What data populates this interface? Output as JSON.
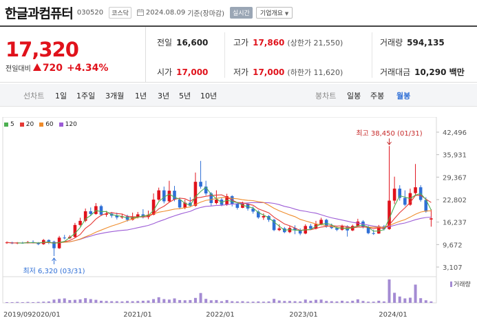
{
  "header": {
    "name": "한글과컴퓨터",
    "code": "030520",
    "market": "코스닥",
    "date": "2024.08.09",
    "basis": "기준(장마감)",
    "realtime": "실시간",
    "company_btn": "기업개요"
  },
  "price": {
    "current": "17,320",
    "diff_label": "전일대비",
    "diff": "720",
    "diff_pct": "+4.34%"
  },
  "stats": {
    "prev_label": "전일",
    "prev_val": "16,600",
    "high_label": "고가",
    "high_val": "17,860",
    "upper_limit": "(상한가 21,550)",
    "volume_label": "거래량",
    "volume_val": "594,135",
    "open_label": "시가",
    "open_val": "17,000",
    "low_label": "저가",
    "low_val": "17,000",
    "lower_limit": "(하한가 11,620)",
    "amount_label": "거래대금",
    "amount_val": "10,290 백만"
  },
  "tabs": {
    "line": "선차트",
    "p1d": "1일",
    "p1w": "1주일",
    "p3m": "3개월",
    "p1y": "1년",
    "p3y": "3년",
    "p5y": "5년",
    "p10y": "10년",
    "candle": "봉차트",
    "daily": "일봉",
    "weekly": "주봉",
    "monthly": "월봉"
  },
  "colors": {
    "up": "#e0121b",
    "down": "#2f6fd6",
    "ma5": "#4caf50",
    "ma20": "#e53935",
    "ma60": "#ef8c2b",
    "ma120": "#9c5bd6",
    "volume": "#a48bd3"
  },
  "chart_data": {
    "type": "candlestick",
    "ma_legend": [
      {
        "label": "5",
        "color": "#4caf50"
      },
      {
        "label": "20",
        "color": "#e53935"
      },
      {
        "label": "60",
        "color": "#ef8c2b"
      },
      {
        "label": "120",
        "color": "#9c5bd6"
      }
    ],
    "y_ticks": [
      "42,496",
      "35,931",
      "29,367",
      "22,802",
      "16,237",
      "9,672",
      "3,107"
    ],
    "ylim": [
      3107,
      42496
    ],
    "x_ticks": [
      "2019/09",
      "2020/01",
      "2021/01",
      "2022/01",
      "2023/01",
      "2024/01"
    ],
    "max_note": "최고 38,450 (01/31)",
    "min_note": "최저 6,320 (03/31)",
    "volume_label": "거래량",
    "candles": [
      {
        "o": 10100,
        "c": 10300,
        "h": 10600,
        "l": 9900
      },
      {
        "o": 10300,
        "c": 10000,
        "h": 10500,
        "l": 9800
      },
      {
        "o": 10000,
        "c": 10200,
        "h": 10400,
        "l": 9800
      },
      {
        "o": 10200,
        "c": 10100,
        "h": 10500,
        "l": 9900
      },
      {
        "o": 10100,
        "c": 10400,
        "h": 10700,
        "l": 10000
      },
      {
        "o": 10400,
        "c": 10200,
        "h": 10900,
        "l": 10000
      },
      {
        "o": 10200,
        "c": 9800,
        "h": 10400,
        "l": 9500
      },
      {
        "o": 9800,
        "c": 11000,
        "h": 11300,
        "l": 9600
      },
      {
        "o": 11000,
        "c": 10500,
        "h": 11200,
        "l": 9800
      },
      {
        "o": 10500,
        "c": 8600,
        "h": 10800,
        "l": 6320
      },
      {
        "o": 8600,
        "c": 11700,
        "h": 12200,
        "l": 8400
      },
      {
        "o": 11700,
        "c": 11500,
        "h": 12500,
        "l": 11200
      },
      {
        "o": 11500,
        "c": 11900,
        "h": 12400,
        "l": 11300
      },
      {
        "o": 11900,
        "c": 15400,
        "h": 16000,
        "l": 11700
      },
      {
        "o": 15400,
        "c": 16600,
        "h": 17500,
        "l": 15000
      },
      {
        "o": 16600,
        "c": 19400,
        "h": 20200,
        "l": 16200
      },
      {
        "o": 19400,
        "c": 18600,
        "h": 20500,
        "l": 18000
      },
      {
        "o": 18600,
        "c": 20900,
        "h": 21800,
        "l": 18400
      },
      {
        "o": 20900,
        "c": 18400,
        "h": 21300,
        "l": 18000
      },
      {
        "o": 18400,
        "c": 18700,
        "h": 19500,
        "l": 17800
      },
      {
        "o": 18700,
        "c": 18100,
        "h": 19200,
        "l": 17500
      },
      {
        "o": 18100,
        "c": 17600,
        "h": 19000,
        "l": 17000
      },
      {
        "o": 17600,
        "c": 17900,
        "h": 18700,
        "l": 17200
      },
      {
        "o": 17900,
        "c": 16900,
        "h": 18400,
        "l": 16400
      },
      {
        "o": 16900,
        "c": 17700,
        "h": 19000,
        "l": 16700
      },
      {
        "o": 17700,
        "c": 18500,
        "h": 19200,
        "l": 17300
      },
      {
        "o": 18500,
        "c": 17700,
        "h": 20000,
        "l": 17300
      },
      {
        "o": 17700,
        "c": 18400,
        "h": 19600,
        "l": 17100
      },
      {
        "o": 18400,
        "c": 22800,
        "h": 24600,
        "l": 18200
      },
      {
        "o": 22800,
        "c": 25500,
        "h": 26300,
        "l": 22500
      },
      {
        "o": 25500,
        "c": 22300,
        "h": 26600,
        "l": 21700
      },
      {
        "o": 22300,
        "c": 25400,
        "h": 28300,
        "l": 22000
      },
      {
        "o": 25400,
        "c": 22800,
        "h": 26800,
        "l": 22300
      },
      {
        "o": 22800,
        "c": 20500,
        "h": 23400,
        "l": 20000
      },
      {
        "o": 20500,
        "c": 21900,
        "h": 22800,
        "l": 20000
      },
      {
        "o": 21900,
        "c": 21000,
        "h": 23500,
        "l": 20600
      },
      {
        "o": 21000,
        "c": 28000,
        "h": 30700,
        "l": 20700
      },
      {
        "o": 28000,
        "c": 26600,
        "h": 34100,
        "l": 26000
      },
      {
        "o": 26600,
        "c": 24600,
        "h": 28300,
        "l": 24000
      },
      {
        "o": 24600,
        "c": 21800,
        "h": 25000,
        "l": 21000
      },
      {
        "o": 21800,
        "c": 22800,
        "h": 25500,
        "l": 21400
      },
      {
        "o": 22800,
        "c": 21300,
        "h": 23400,
        "l": 20900
      },
      {
        "o": 21300,
        "c": 23800,
        "h": 24500,
        "l": 21000
      },
      {
        "o": 23800,
        "c": 21600,
        "h": 24100,
        "l": 20800
      },
      {
        "o": 21600,
        "c": 20400,
        "h": 22000,
        "l": 19900
      },
      {
        "o": 20400,
        "c": 21600,
        "h": 22200,
        "l": 20300
      },
      {
        "o": 21600,
        "c": 20200,
        "h": 21900,
        "l": 19600
      },
      {
        "o": 20200,
        "c": 19300,
        "h": 20800,
        "l": 18700
      },
      {
        "o": 19300,
        "c": 17600,
        "h": 19700,
        "l": 17200
      },
      {
        "o": 17600,
        "c": 18000,
        "h": 18800,
        "l": 16900
      },
      {
        "o": 18000,
        "c": 16900,
        "h": 18300,
        "l": 16300
      },
      {
        "o": 16900,
        "c": 13900,
        "h": 17200,
        "l": 13600
      },
      {
        "o": 13900,
        "c": 14400,
        "h": 15600,
        "l": 13600
      },
      {
        "o": 14400,
        "c": 13300,
        "h": 14800,
        "l": 13000
      },
      {
        "o": 13300,
        "c": 14500,
        "h": 15100,
        "l": 13000
      },
      {
        "o": 14500,
        "c": 13900,
        "h": 15300,
        "l": 12700
      },
      {
        "o": 13900,
        "c": 12900,
        "h": 14400,
        "l": 12400
      },
      {
        "o": 12900,
        "c": 15100,
        "h": 15600,
        "l": 12700
      },
      {
        "o": 15100,
        "c": 14300,
        "h": 15700,
        "l": 14000
      },
      {
        "o": 14300,
        "c": 15600,
        "h": 16600,
        "l": 14100
      },
      {
        "o": 15600,
        "c": 16900,
        "h": 17500,
        "l": 15300
      },
      {
        "o": 16900,
        "c": 15000,
        "h": 17200,
        "l": 14600
      },
      {
        "o": 15000,
        "c": 14500,
        "h": 15800,
        "l": 14200
      },
      {
        "o": 14500,
        "c": 14000,
        "h": 14900,
        "l": 13600
      },
      {
        "o": 14000,
        "c": 15000,
        "h": 15500,
        "l": 13700
      },
      {
        "o": 15000,
        "c": 13800,
        "h": 15300,
        "l": 12000
      },
      {
        "o": 13800,
        "c": 15100,
        "h": 15500,
        "l": 13600
      },
      {
        "o": 15100,
        "c": 16400,
        "h": 17200,
        "l": 14900
      },
      {
        "o": 16400,
        "c": 14800,
        "h": 16800,
        "l": 14400
      },
      {
        "o": 14800,
        "c": 13000,
        "h": 15200,
        "l": 12700
      },
      {
        "o": 13000,
        "c": 12900,
        "h": 14000,
        "l": 12500
      },
      {
        "o": 12900,
        "c": 15000,
        "h": 15400,
        "l": 12800
      },
      {
        "o": 15000,
        "c": 14200,
        "h": 15400,
        "l": 13800
      },
      {
        "o": 14200,
        "c": 22500,
        "h": 38450,
        "l": 14000
      },
      {
        "o": 22500,
        "c": 26000,
        "h": 29500,
        "l": 21500
      },
      {
        "o": 26000,
        "c": 23300,
        "h": 27000,
        "l": 22500
      },
      {
        "o": 23300,
        "c": 21300,
        "h": 25500,
        "l": 20900
      },
      {
        "o": 21300,
        "c": 24700,
        "h": 26000,
        "l": 21000
      },
      {
        "o": 24700,
        "c": 26400,
        "h": 33200,
        "l": 23900
      },
      {
        "o": 26400,
        "c": 22700,
        "h": 27000,
        "l": 22200
      },
      {
        "o": 22700,
        "c": 19300,
        "h": 23500,
        "l": 19000
      },
      {
        "o": 17000,
        "c": 17320,
        "h": 20000,
        "l": 14900
      }
    ],
    "volumes": [
      0.03,
      0.03,
      0.04,
      0.03,
      0.04,
      0.03,
      0.04,
      0.05,
      0.06,
      0.14,
      0.17,
      0.19,
      0.12,
      0.13,
      0.15,
      0.2,
      0.16,
      0.13,
      0.09,
      0.08,
      0.07,
      0.07,
      0.06,
      0.08,
      0.07,
      0.08,
      0.09,
      0.1,
      0.16,
      0.24,
      0.16,
      0.14,
      0.19,
      0.12,
      0.11,
      0.12,
      0.21,
      0.42,
      0.17,
      0.11,
      0.12,
      0.07,
      0.12,
      0.07,
      0.06,
      0.07,
      0.05,
      0.05,
      0.06,
      0.05,
      0.06,
      0.17,
      0.1,
      0.08,
      0.08,
      0.07,
      0.06,
      0.14,
      0.09,
      0.13,
      0.14,
      0.08,
      0.07,
      0.06,
      0.09,
      0.06,
      0.09,
      0.15,
      0.08,
      0.05,
      0.05,
      0.09,
      0.06,
      1.0,
      0.43,
      0.27,
      0.19,
      0.22,
      0.78,
      0.2,
      0.11,
      0.06
    ]
  }
}
